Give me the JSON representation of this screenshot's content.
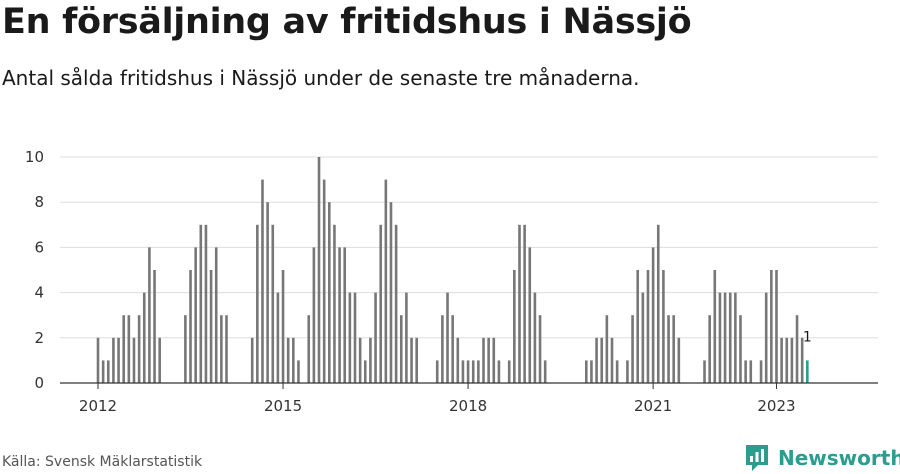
{
  "title": "En försäljning av fritidshus i Nässjö",
  "subtitle": "Antal sålda fritidshus i Nässjö under de senaste tre månaderna.",
  "source": "Källa: Svensk Mäklarstatistik",
  "brand": {
    "name": "Newsworthy",
    "icon": "newsworthy-logo-icon"
  },
  "colors": {
    "bar": "#777777",
    "highlight": "#2a9d8f",
    "grid": "#dddddd",
    "axis": "#333333"
  },
  "chart_data": {
    "type": "bar",
    "start": {
      "year": 2012,
      "month": 1
    },
    "frequency": "monthly",
    "values": [
      2,
      1,
      1,
      2,
      2,
      3,
      3,
      2,
      3,
      4,
      6,
      5,
      2,
      0,
      0,
      0,
      0,
      3,
      5,
      6,
      7,
      7,
      5,
      6,
      3,
      3,
      0,
      0,
      0,
      0,
      2,
      7,
      9,
      8,
      7,
      4,
      5,
      2,
      2,
      1,
      0,
      3,
      6,
      10,
      9,
      8,
      7,
      6,
      6,
      4,
      4,
      2,
      1,
      2,
      4,
      7,
      9,
      8,
      7,
      3,
      4,
      2,
      2,
      0,
      0,
      0,
      1,
      3,
      4,
      3,
      2,
      1,
      1,
      1,
      1,
      2,
      2,
      2,
      1,
      0,
      1,
      5,
      7,
      7,
      6,
      4,
      3,
      1,
      0,
      0,
      0,
      0,
      0,
      0,
      0,
      1,
      1,
      2,
      2,
      3,
      2,
      1,
      0,
      1,
      3,
      5,
      4,
      5,
      6,
      7,
      5,
      3,
      3,
      2,
      0,
      0,
      0,
      0,
      1,
      3,
      5,
      4,
      4,
      4,
      4,
      3,
      1,
      1,
      0,
      1,
      4,
      5,
      5,
      2,
      2,
      2,
      3,
      2,
      1
    ],
    "highlight_last": true,
    "last_label": "1",
    "x_ticks": [
      "2012",
      "2015",
      "2018",
      "2021",
      "2023"
    ],
    "y_ticks": [
      "0",
      "2",
      "4",
      "6",
      "8",
      "10"
    ],
    "ylim": [
      0,
      10
    ],
    "grid": true,
    "xlabel": "",
    "ylabel": ""
  }
}
